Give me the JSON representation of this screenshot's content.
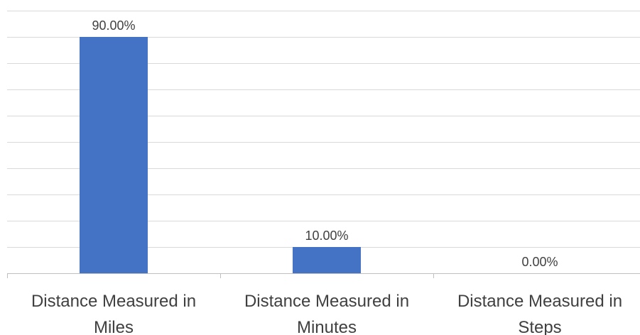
{
  "chart_data": {
    "type": "bar",
    "title": "",
    "xlabel": "",
    "ylabel": "",
    "categories": [
      [
        "Distance Measured in",
        "Miles"
      ],
      [
        "Distance Measured in",
        "Minutes"
      ],
      [
        "Distance Measured in",
        "Steps"
      ]
    ],
    "values": [
      90,
      10,
      0
    ],
    "data_labels": [
      "90.00%",
      "10.00%",
      "0.00%"
    ],
    "ylim": [
      0,
      100
    ],
    "y_gridline_step": 10,
    "grid": true,
    "legend": "none",
    "colors": {
      "bar": "#4472c4",
      "grid": "#d9d9d9",
      "text": "#404040"
    }
  }
}
